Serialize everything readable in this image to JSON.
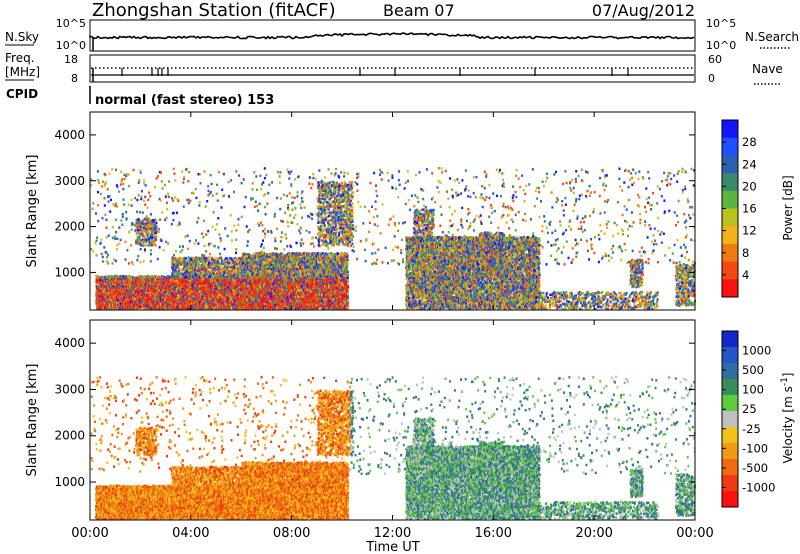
{
  "header": {
    "station": "Zhongshan Station (fitACF)",
    "beam": "Beam 07",
    "date": "07/Aug/2012"
  },
  "left_labels": {
    "nsky": "N.Sky",
    "freq_line1": "Freq.",
    "freq_line2": "[MHz]",
    "cpid": "CPID"
  },
  "right_labels": {
    "nsearch": "N.Search",
    "nave": "Nave"
  },
  "cpid_text": "normal (fast stereo) 153",
  "chart_data": [
    {
      "type": "line",
      "name": "noise",
      "left_ticks": [
        "10^5",
        "10^0"
      ],
      "right_ticks": [
        "10^5",
        "10^0"
      ]
    },
    {
      "type": "line",
      "name": "freq_nave",
      "left_ticks": [
        "18",
        "8"
      ],
      "right_ticks": [
        "60",
        "0"
      ]
    },
    {
      "type": "heatmap",
      "name": "power",
      "ylabel": "Slant Range [km]",
      "yticks": [
        "4000",
        "3000",
        "2000",
        "1000"
      ],
      "colorbar_label": "Power [dB]",
      "colorbar_ticks": [
        "28",
        "24",
        "20",
        "16",
        "12",
        "8",
        "4"
      ],
      "colorbar_colors": [
        "#1414ff",
        "#2050ff",
        "#2f5fb0",
        "#3a8a6a",
        "#5db33f",
        "#b8c21a",
        "#f2b21a",
        "#f07a12",
        "#f04a10",
        "#ff1010"
      ]
    },
    {
      "type": "heatmap",
      "name": "velocity",
      "ylabel": "Slant Range [km]",
      "yticks": [
        "4000",
        "3000",
        "2000",
        "1000"
      ],
      "colorbar_label": "Velocity [m s",
      "colorbar_unit_sup": "-1",
      "colorbar_unit_close": "]",
      "colorbar_ticks": [
        "1000",
        "500",
        "100",
        "25",
        "-25",
        "-100",
        "-500",
        "-1000"
      ],
      "colorbar_colors": [
        "#1428c8",
        "#2456c8",
        "#2e6ea0",
        "#3a8c5a",
        "#5dcc3c",
        "#c0c0c0",
        "#f2c21a",
        "#f09a18",
        "#f06a10",
        "#f03a10",
        "#ff1010"
      ]
    }
  ],
  "xaxis": {
    "label": "Time UT",
    "ticks": [
      "00:00",
      "04:00",
      "08:00",
      "12:00",
      "16:00",
      "20:00",
      "00:00"
    ]
  }
}
